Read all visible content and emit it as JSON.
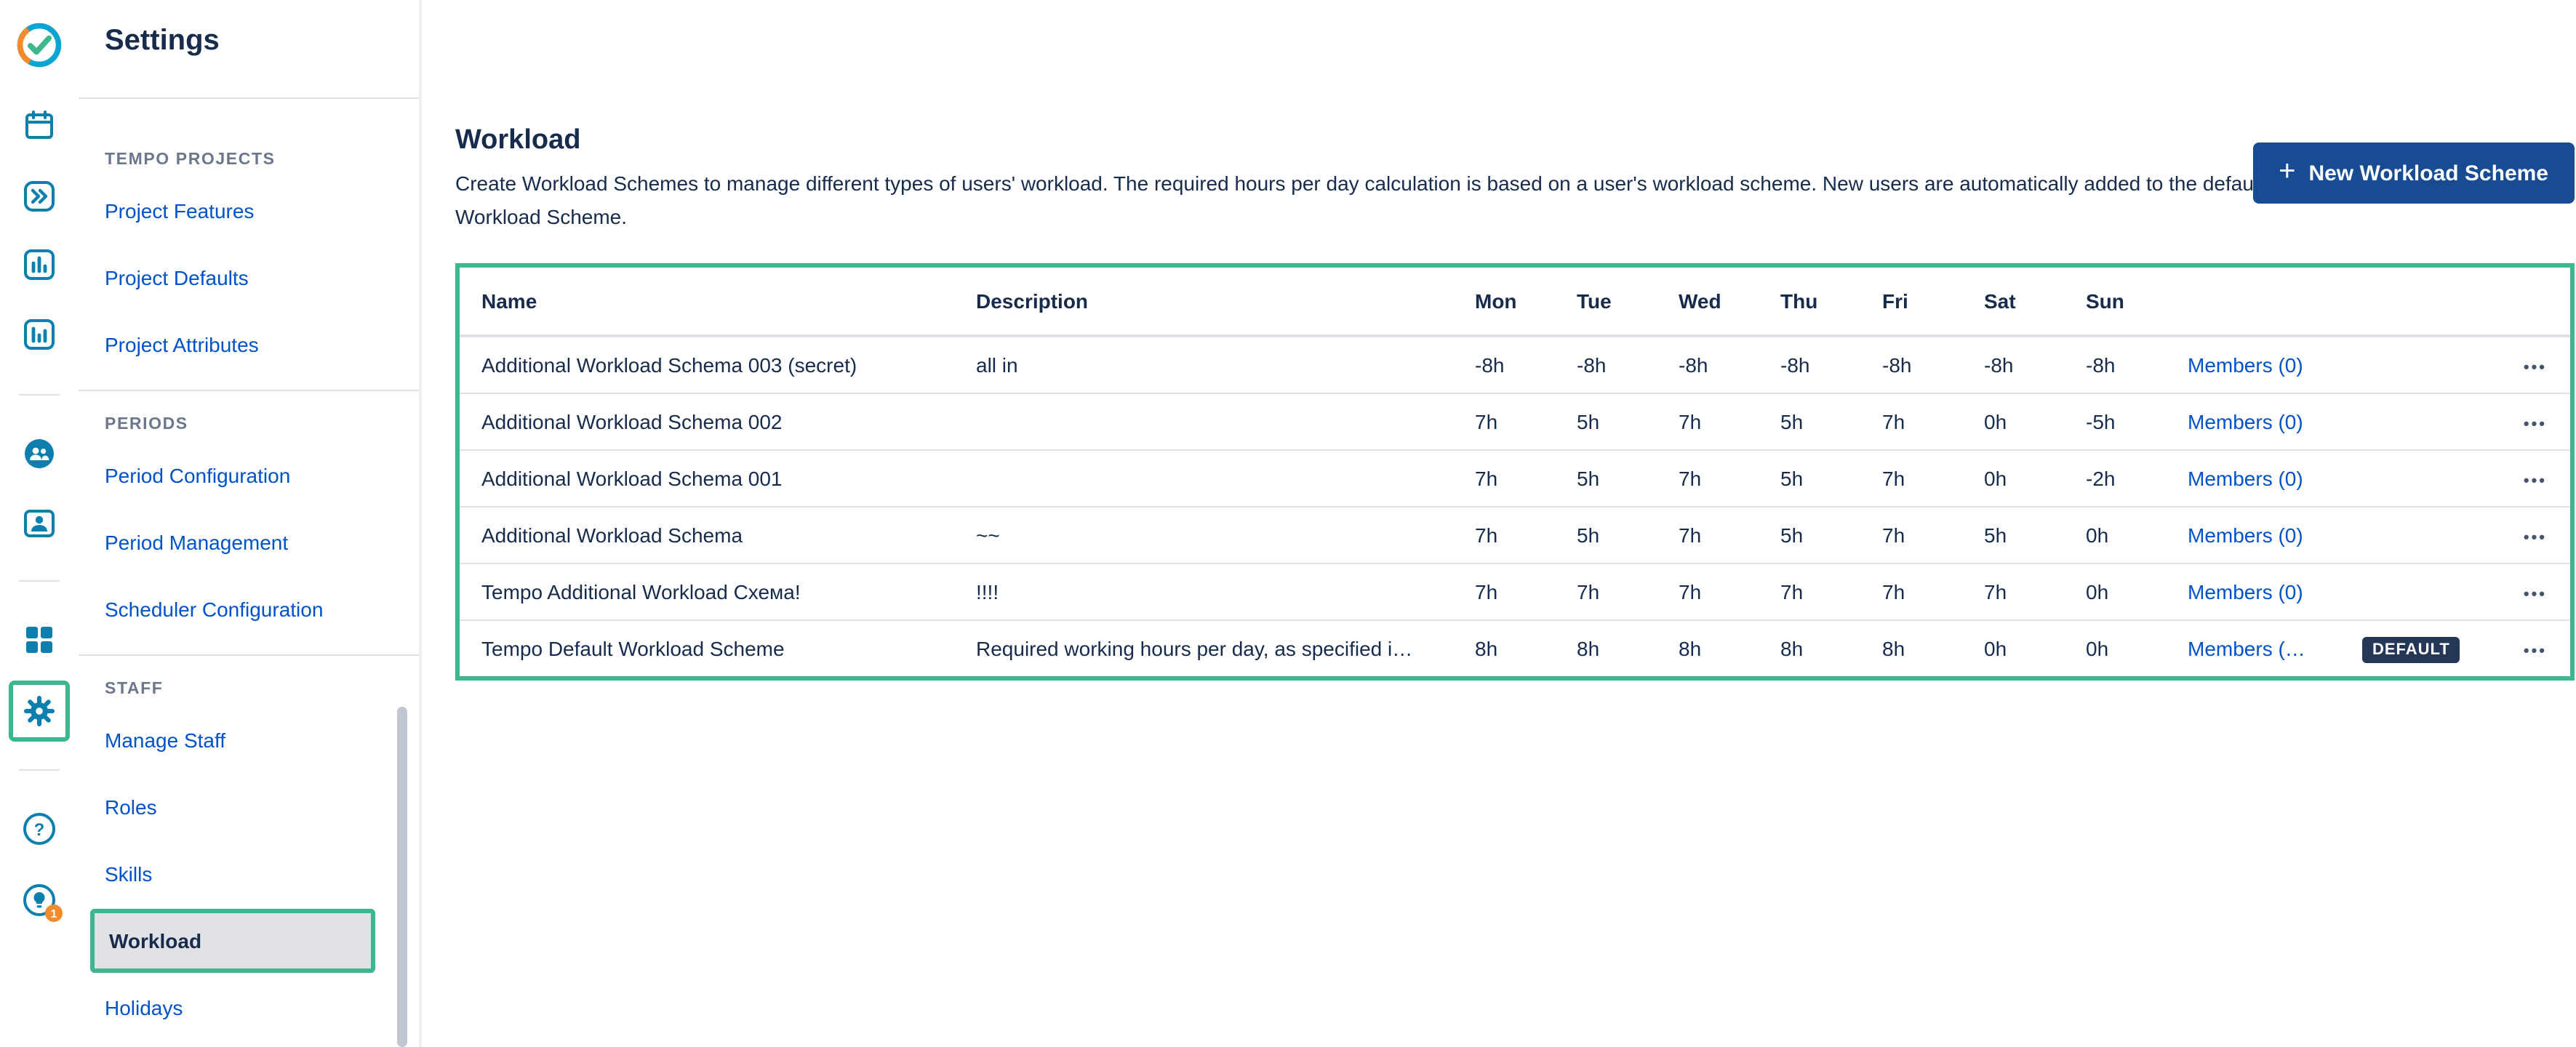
{
  "colors": {
    "accent_green": "#3CB98C",
    "link_blue": "#0052CC",
    "button_blue": "#174B92",
    "badge_navy": "#243757",
    "icon_teal": "#0C7FAF",
    "selected_bg": "#E0E2E6",
    "orange": "#F18B2B"
  },
  "header": {
    "title": "Settings"
  },
  "rail": {
    "icons": [
      "tempo-logo",
      "calendar",
      "quick-switch",
      "reports",
      "metrics",
      "team",
      "staff",
      "apps",
      "settings-gear",
      "help",
      "tips"
    ],
    "tips_badge": "1"
  },
  "sidebar": {
    "sections": [
      {
        "title": "TEMPO PROJECTS",
        "items": [
          {
            "label": "Project Features"
          },
          {
            "label": "Project Defaults"
          },
          {
            "label": "Project Attributes"
          }
        ]
      },
      {
        "title": "PERIODS",
        "items": [
          {
            "label": "Period Configuration"
          },
          {
            "label": "Period Management"
          },
          {
            "label": "Scheduler Configuration"
          }
        ]
      },
      {
        "title": "STAFF",
        "items": [
          {
            "label": "Manage Staff"
          },
          {
            "label": "Roles"
          },
          {
            "label": "Skills"
          },
          {
            "label": "Workload",
            "selected": true
          },
          {
            "label": "Holidays"
          }
        ]
      }
    ]
  },
  "main": {
    "heading": "Workload",
    "description": "Create Workload Schemes to manage different types of users' workload. The required hours per day calculation is based on a user's workload scheme. New users are automatically added to the default Workload Scheme.",
    "new_button_icon": "+",
    "new_button_label": "New Workload Scheme",
    "table": {
      "columns": [
        "Name",
        "Description",
        "Mon",
        "Tue",
        "Wed",
        "Thu",
        "Fri",
        "Sat",
        "Sun"
      ],
      "actions_label": "•••",
      "rows": [
        {
          "name": "Additional Workload Schema 003 (secret)",
          "description": "all in",
          "hours": [
            "-8h",
            "-8h",
            "-8h",
            "-8h",
            "-8h",
            "-8h",
            "-8h"
          ],
          "members": "Members (0)",
          "badge": ""
        },
        {
          "name": "Additional Workload Schema 002",
          "description": "",
          "hours": [
            "7h",
            "5h",
            "7h",
            "5h",
            "7h",
            "0h",
            "-5h"
          ],
          "members": "Members (0)",
          "badge": ""
        },
        {
          "name": "Additional Workload Schema 001",
          "description": "",
          "hours": [
            "7h",
            "5h",
            "7h",
            "5h",
            "7h",
            "0h",
            "-2h"
          ],
          "members": "Members (0)",
          "badge": ""
        },
        {
          "name": "Additional Workload Schema",
          "description": "~~",
          "hours": [
            "7h",
            "5h",
            "7h",
            "5h",
            "7h",
            "5h",
            "0h"
          ],
          "members": "Members (0)",
          "badge": ""
        },
        {
          "name": "Tempo Additional Workload Схема!",
          "description": "!!!!",
          "hours": [
            "7h",
            "7h",
            "7h",
            "7h",
            "7h",
            "7h",
            "0h"
          ],
          "members": "Members (0)",
          "badge": ""
        },
        {
          "name": "Tempo Default Workload Scheme",
          "description": "Required working hours per day, as specified i…",
          "hours": [
            "8h",
            "8h",
            "8h",
            "8h",
            "8h",
            "0h",
            "0h"
          ],
          "members": "Members (…",
          "badge": "DEFAULT"
        }
      ]
    }
  }
}
